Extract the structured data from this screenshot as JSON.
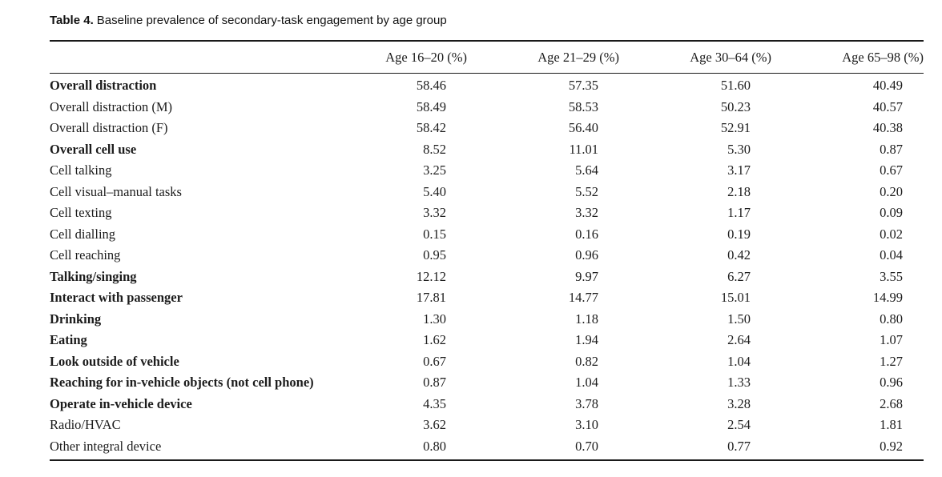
{
  "title": {
    "label": "Table 4.",
    "text": "Baseline prevalence of secondary-task engagement by age group"
  },
  "table": {
    "columns": [
      "Age 16–20 (%)",
      "Age 21–29 (%)",
      "Age 30–64 (%)",
      "Age 65–98 (%)"
    ],
    "rows": [
      {
        "label": "Overall distraction",
        "bold": true,
        "values": [
          "58.46",
          "57.35",
          "51.60",
          "40.49"
        ]
      },
      {
        "label": "Overall distraction (M)",
        "bold": false,
        "values": [
          "58.49",
          "58.53",
          "50.23",
          "40.57"
        ]
      },
      {
        "label": "Overall distraction (F)",
        "bold": false,
        "values": [
          "58.42",
          "56.40",
          "52.91",
          "40.38"
        ]
      },
      {
        "label": "Overall cell use",
        "bold": true,
        "values": [
          "8.52",
          "11.01",
          "5.30",
          "0.87"
        ]
      },
      {
        "label": "Cell talking",
        "bold": false,
        "values": [
          "3.25",
          "5.64",
          "3.17",
          "0.67"
        ]
      },
      {
        "label": "Cell visual–manual tasks",
        "bold": false,
        "values": [
          "5.40",
          "5.52",
          "2.18",
          "0.20"
        ]
      },
      {
        "label": "Cell texting",
        "bold": false,
        "values": [
          "3.32",
          "3.32",
          "1.17",
          "0.09"
        ]
      },
      {
        "label": "Cell dialling",
        "bold": false,
        "values": [
          "0.15",
          "0.16",
          "0.19",
          "0.02"
        ]
      },
      {
        "label": "Cell reaching",
        "bold": false,
        "values": [
          "0.95",
          "0.96",
          "0.42",
          "0.04"
        ]
      },
      {
        "label": "Talking/singing",
        "bold": true,
        "values": [
          "12.12",
          "9.97",
          "6.27",
          "3.55"
        ]
      },
      {
        "label": "Interact with passenger",
        "bold": true,
        "values": [
          "17.81",
          "14.77",
          "15.01",
          "14.99"
        ]
      },
      {
        "label": "Drinking",
        "bold": true,
        "values": [
          "1.30",
          "1.18",
          "1.50",
          "0.80"
        ]
      },
      {
        "label": "Eating",
        "bold": true,
        "values": [
          "1.62",
          "1.94",
          "2.64",
          "1.07"
        ]
      },
      {
        "label": "Look outside of vehicle",
        "bold": true,
        "values": [
          "0.67",
          "0.82",
          "1.04",
          "1.27"
        ]
      },
      {
        "label": "Reaching for in-vehicle objects (not cell phone)",
        "bold": true,
        "values": [
          "0.87",
          "1.04",
          "1.33",
          "0.96"
        ]
      },
      {
        "label": "Operate in-vehicle device",
        "bold": true,
        "values": [
          "4.35",
          "3.78",
          "3.28",
          "2.68"
        ]
      },
      {
        "label": "Radio/HVAC",
        "bold": false,
        "values": [
          "3.62",
          "3.10",
          "2.54",
          "1.81"
        ]
      },
      {
        "label": "Other integral device",
        "bold": false,
        "values": [
          "0.80",
          "0.70",
          "0.77",
          "0.92"
        ]
      }
    ]
  }
}
